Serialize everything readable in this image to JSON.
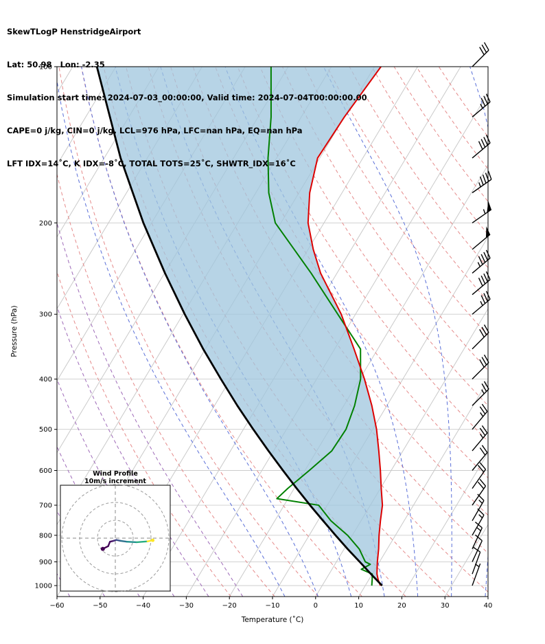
{
  "header": {
    "title": "SkewTLogP HenstridgeAirport",
    "location": "Lat: 50.98   Lon: -2.35",
    "times": "Simulation start time: 2024-07-03_00:00:00, Valid time: 2024-07-04T00:00:00.00",
    "indices_line1": "CAPE=0 j/kg, CIN=0 j/kg, LCL=976 hPa, LFC=nan hPa, EQ=nan hPa",
    "indices_line2": "LFT IDX=14˚C, K IDX=-8˚C, TOTAL TOTS=25˚C, SHWTR_IDX=16˚C"
  },
  "axes": {
    "xlabel": "Temperature (˚C)",
    "ylabel": "Pressure (hPa)",
    "x_tick_values": [
      -60,
      -50,
      -40,
      -30,
      -20,
      -10,
      0,
      10,
      20,
      30,
      40
    ],
    "x_tick_labels": [
      "−60",
      "−50",
      "−40",
      "−30",
      "−20",
      "−10",
      "0",
      "10",
      "20",
      "30",
      "40"
    ],
    "y_tick_values": [
      100,
      200,
      300,
      400,
      500,
      600,
      700,
      800,
      900,
      1000
    ],
    "y_tick_labels": [
      "100",
      "200",
      "300",
      "400",
      "500",
      "600",
      "700",
      "800",
      "900",
      "1000"
    ],
    "xlim": [
      -60,
      40
    ],
    "pressure_lim": [
      100,
      1050
    ]
  },
  "chart_data": {
    "type": "line",
    "subtype": "skewT-logP sounding",
    "title": "SkewTLogP HenstridgeAirport",
    "xlabel": "Temperature (˚C)",
    "ylabel": "Pressure (hPa)",
    "xlim": [
      -60,
      40
    ],
    "pressure_range": [
      100,
      1050
    ],
    "grid": "on",
    "series": [
      {
        "name": "temperature",
        "color": "#dd0000",
        "width": 2,
        "pressure": [
          1000,
          975,
          950,
          925,
          900,
          850,
          800,
          750,
          700,
          650,
          600,
          550,
          500,
          450,
          400,
          350,
          300,
          250,
          225,
          200,
          175,
          150,
          125,
          100
        ],
        "values": [
          13.5,
          12.2,
          11.1,
          10.3,
          9.5,
          8.0,
          6.2,
          4.5,
          2.8,
          0.2,
          -2.5,
          -5.6,
          -9.1,
          -13.5,
          -18.9,
          -25.5,
          -33.3,
          -43.8,
          -48.8,
          -53.7,
          -57.5,
          -60.5,
          -60.0,
          -58.5
        ]
      },
      {
        "name": "dewpoint",
        "color": "#008000",
        "width": 2,
        "pressure": [
          1000,
          975,
          950,
          930,
          910,
          900,
          850,
          800,
          750,
          700,
          680,
          650,
          600,
          550,
          500,
          450,
          400,
          350,
          300,
          250,
          200,
          175,
          150,
          125,
          100
        ],
        "values": [
          11.5,
          10.8,
          10.0,
          6.8,
          8.2,
          6.7,
          3.5,
          -1.1,
          -7.0,
          -12.0,
          -22.6,
          -21.5,
          -19.0,
          -16.5,
          -16.2,
          -17.5,
          -19.8,
          -24.0,
          -34.1,
          -46.0,
          -61.3,
          -67.0,
          -72.0,
          -77.0,
          -84.0
        ]
      },
      {
        "name": "parcel_dry_adiabat",
        "color": "#000000",
        "width": 2.8,
        "pressure": [
          1000,
          950,
          900,
          850,
          800,
          750,
          700,
          650,
          600,
          550,
          500,
          450,
          400,
          350,
          300,
          250,
          200,
          150,
          100
        ],
        "values": [
          13.9,
          9.7,
          5.4,
          0.8,
          -3.9,
          -8.8,
          -14.0,
          -19.4,
          -25.1,
          -31.2,
          -37.7,
          -44.7,
          -52.2,
          -60.5,
          -69.6,
          -79.9,
          -91.9,
          -106.2,
          -124.4
        ]
      }
    ],
    "shading": {
      "between": [
        "parcel_dry_adiabat",
        "temperature"
      ],
      "color": "#9fc5dd",
      "opacity": 0.75
    },
    "background_lines": {
      "isotherms": {
        "color": "#c9c9c9",
        "style": "solid",
        "start_c": -130,
        "end_c": 40,
        "step_c": 10
      },
      "pressure_gridlines": {
        "color": "#cccccc",
        "style": "solid",
        "levels": [
          100,
          200,
          300,
          400,
          500,
          600,
          700,
          800,
          900,
          1000
        ]
      },
      "dry_adiabats": {
        "color": "#e58a8a",
        "style": "dashed",
        "theta_k_start": 250,
        "theta_k_end": 440,
        "step_k": 10
      },
      "moist_adiabats": {
        "color": "#5a6fd8",
        "style": "dashed",
        "start_temps_c": [
          -10,
          -2,
          6,
          14,
          22,
          30,
          38,
          46,
          54,
          62
        ]
      },
      "moist_adiabats_cold": {
        "color": "#9e6ab8",
        "style": "dashed",
        "start_temps_c": [
          -60,
          -52,
          -44,
          -36,
          -28,
          -20
        ]
      }
    },
    "wind_barbs": {
      "units": "m/s",
      "full_barb": 10,
      "half_barb": 5,
      "pennant": 50,
      "pressure": [
        1000,
        950,
        900,
        850,
        800,
        750,
        700,
        650,
        600,
        550,
        500,
        450,
        400,
        350,
        300,
        275,
        250,
        225,
        200,
        175,
        150,
        125,
        100
      ],
      "speed": [
        5,
        10,
        10,
        15,
        15,
        15,
        20,
        20,
        20,
        25,
        25,
        25,
        30,
        30,
        35,
        40,
        45,
        50,
        55,
        45,
        40,
        35,
        30
      ],
      "direction_from_deg": [
        200,
        200,
        205,
        205,
        210,
        210,
        215,
        215,
        220,
        220,
        220,
        225,
        225,
        225,
        230,
        230,
        230,
        230,
        235,
        235,
        230,
        230,
        225
      ]
    },
    "hodograph": {
      "title": "Wind Profile",
      "subtitle": "10m/s increment",
      "rings_ms": [
        10,
        20,
        30
      ],
      "u_ms": [
        -7,
        -4,
        -3,
        -1,
        0.5,
        3,
        6.5,
        12,
        18,
        21
      ],
      "v_ms": [
        -6,
        -4.5,
        -2,
        -1.5,
        -1,
        -1.5,
        -2,
        -2.3,
        -1.8,
        -1.2
      ],
      "segment_colors": [
        "#440154",
        "#46085c",
        "#471063",
        "#472a7a",
        "#3b518b",
        "#2c718e",
        "#21908d",
        "#27ad81",
        "#fde725"
      ]
    }
  }
}
